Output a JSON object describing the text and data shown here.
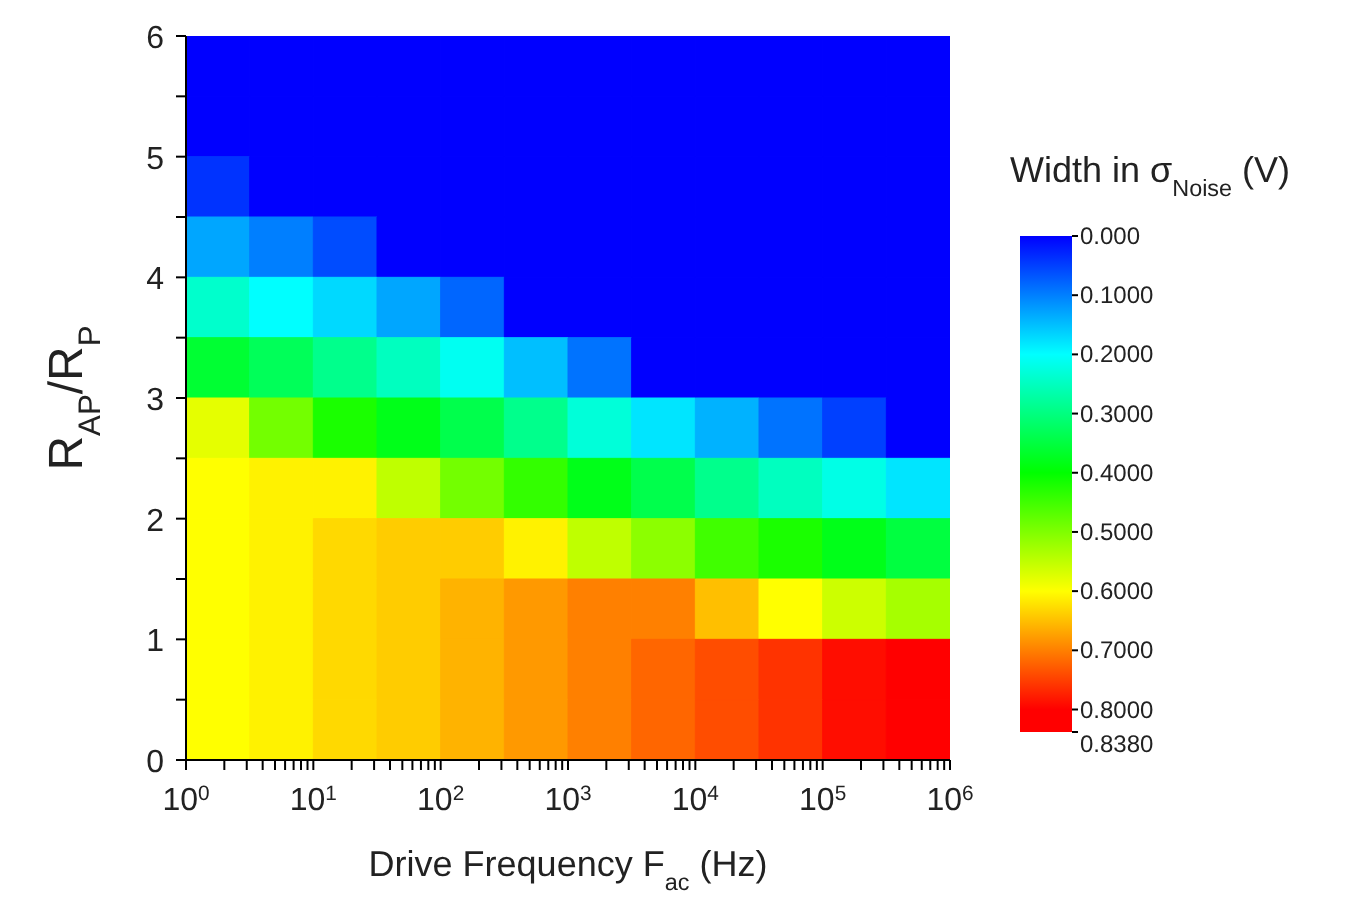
{
  "chart_data": {
    "type": "heatmap",
    "xlabel": "Drive Frequency F$_{ac}$ (Hz)",
    "ylabel": "R$_{AP}$/R$_{P}$",
    "clabel": "Width in σ$_{Noise}$ (V)",
    "log": "x",
    "xlim": [
      1,
      1000000
    ],
    "ylim": [
      0,
      6
    ],
    "xticks": [
      {
        "value": 1,
        "label": "10$^{0}$"
      },
      {
        "value": 2,
        "label": null
      },
      {
        "value": 3,
        "label": null
      },
      {
        "value": 4,
        "label": null
      },
      {
        "value": 5,
        "label": null
      },
      {
        "value": 6,
        "label": null
      },
      {
        "value": 7,
        "label": null
      },
      {
        "value": 8,
        "label": null
      },
      {
        "value": 9,
        "label": null
      },
      {
        "value": 10,
        "label": "10$^{1}$"
      },
      {
        "value": 20,
        "label": null
      },
      {
        "value": 30,
        "label": null
      },
      {
        "value": 40,
        "label": null
      },
      {
        "value": 50,
        "label": null
      },
      {
        "value": 60,
        "label": null
      },
      {
        "value": 70,
        "label": null
      },
      {
        "value": 80,
        "label": null
      },
      {
        "value": 90,
        "label": null
      },
      {
        "value": 100,
        "label": "10$^{2}$"
      },
      {
        "value": 200,
        "label": null
      },
      {
        "value": 300,
        "label": null
      },
      {
        "value": 400,
        "label": null
      },
      {
        "value": 500,
        "label": null
      },
      {
        "value": 600,
        "label": null
      },
      {
        "value": 700,
        "label": null
      },
      {
        "value": 800,
        "label": null
      },
      {
        "value": 900,
        "label": null
      },
      {
        "value": 1000,
        "label": "10$^{3}$"
      },
      {
        "value": 2000,
        "label": null
      },
      {
        "value": 3000,
        "label": null
      },
      {
        "value": 4000,
        "label": null
      },
      {
        "value": 5000,
        "label": null
      },
      {
        "value": 6000,
        "label": null
      },
      {
        "value": 7000,
        "label": null
      },
      {
        "value": 8000,
        "label": null
      },
      {
        "value": 9000,
        "label": null
      },
      {
        "value": 10000,
        "label": "10$^{4}$"
      },
      {
        "value": 20000,
        "label": null
      },
      {
        "value": 30000,
        "label": null
      },
      {
        "value": 40000,
        "label": null
      },
      {
        "value": 50000,
        "label": null
      },
      {
        "value": 60000,
        "label": null
      },
      {
        "value": 70000,
        "label": null
      },
      {
        "value": 80000,
        "label": null
      },
      {
        "value": 90000,
        "label": null
      },
      {
        "value": 100000,
        "label": "10$^{5}$"
      },
      {
        "value": 200000,
        "label": null
      },
      {
        "value": 300000,
        "label": null
      },
      {
        "value": 400000,
        "label": null
      },
      {
        "value": 500000,
        "label": null
      },
      {
        "value": 600000,
        "label": null
      },
      {
        "value": 700000,
        "label": null
      },
      {
        "value": 800000,
        "label": null
      },
      {
        "value": 900000,
        "label": null
      },
      {
        "value": 1000000,
        "label": "10$^{6}$"
      }
    ],
    "yticks": [
      0,
      {
        "value": 0.5,
        "label": null
      },
      1,
      {
        "value": 1.5,
        "label": null
      },
      2,
      {
        "value": 2.5,
        "label": null
      },
      3,
      {
        "value": 3.5,
        "label": null
      },
      4,
      {
        "value": 4.5,
        "label": null
      },
      5,
      {
        "value": 5.5,
        "label": null
      },
      6
    ],
    "cells": [
      [
        0,
        0,
        0,
        0,
        0,
        0,
        0,
        0,
        0,
        0,
        0,
        0
      ],
      [
        0,
        0,
        0,
        0,
        0,
        0,
        0,
        0,
        0,
        0,
        0,
        0
      ],
      [
        0.04,
        0,
        0,
        0,
        0,
        0,
        0,
        0,
        0,
        0,
        0,
        0
      ],
      [
        0.13,
        0.1,
        0.06,
        0,
        0,
        0,
        0,
        0,
        0,
        0,
        0,
        0
      ],
      [
        0.24,
        0.2,
        0.17,
        0.13,
        0.08,
        0,
        0,
        0,
        0,
        0,
        0,
        0
      ],
      [
        0.36,
        0.33,
        0.29,
        0.25,
        0.21,
        0.15,
        0.09,
        0,
        0,
        0,
        0,
        0
      ],
      [
        0.58,
        0.49,
        0.42,
        0.38,
        0.34,
        0.29,
        0.23,
        0.18,
        0.14,
        0.09,
        0.05,
        0
      ],
      [
        0.6,
        0.61,
        0.61,
        0.55,
        0.49,
        0.44,
        0.38,
        0.34,
        0.29,
        0.25,
        0.22,
        0.18
      ],
      [
        0.6,
        0.61,
        0.63,
        0.64,
        0.64,
        0.61,
        0.55,
        0.51,
        0.45,
        0.42,
        0.38,
        0.35
      ],
      [
        0.6,
        0.61,
        0.63,
        0.64,
        0.66,
        0.68,
        0.7,
        0.7,
        0.65,
        0.6,
        0.56,
        0.53
      ],
      [
        0.6,
        0.61,
        0.63,
        0.64,
        0.66,
        0.68,
        0.7,
        0.72,
        0.74,
        0.76,
        0.79,
        0.82
      ],
      [
        0.6,
        0.61,
        0.63,
        0.64,
        0.66,
        0.68,
        0.7,
        0.72,
        0.74,
        0.76,
        0.79,
        0.82
      ]
    ],
    "clim": [
      0,
      0.838
    ],
    "cticks": [
      {
        "value": 0,
        "label": "0.000"
      },
      {
        "value": 0.1,
        "label": "0.1000"
      },
      {
        "value": 0.2,
        "label": "0.2000"
      },
      {
        "value": 0.3,
        "label": "0.3000"
      },
      {
        "value": 0.4,
        "label": "0.4000"
      },
      {
        "value": 0.5,
        "label": "0.5000"
      },
      {
        "value": 0.6,
        "label": "0.6000"
      },
      {
        "value": 0.7,
        "label": "0.7000"
      },
      {
        "value": 0.8,
        "label": "0.8000"
      },
      {
        "value": 0.838,
        "label": "0.8380"
      }
    ]
  }
}
